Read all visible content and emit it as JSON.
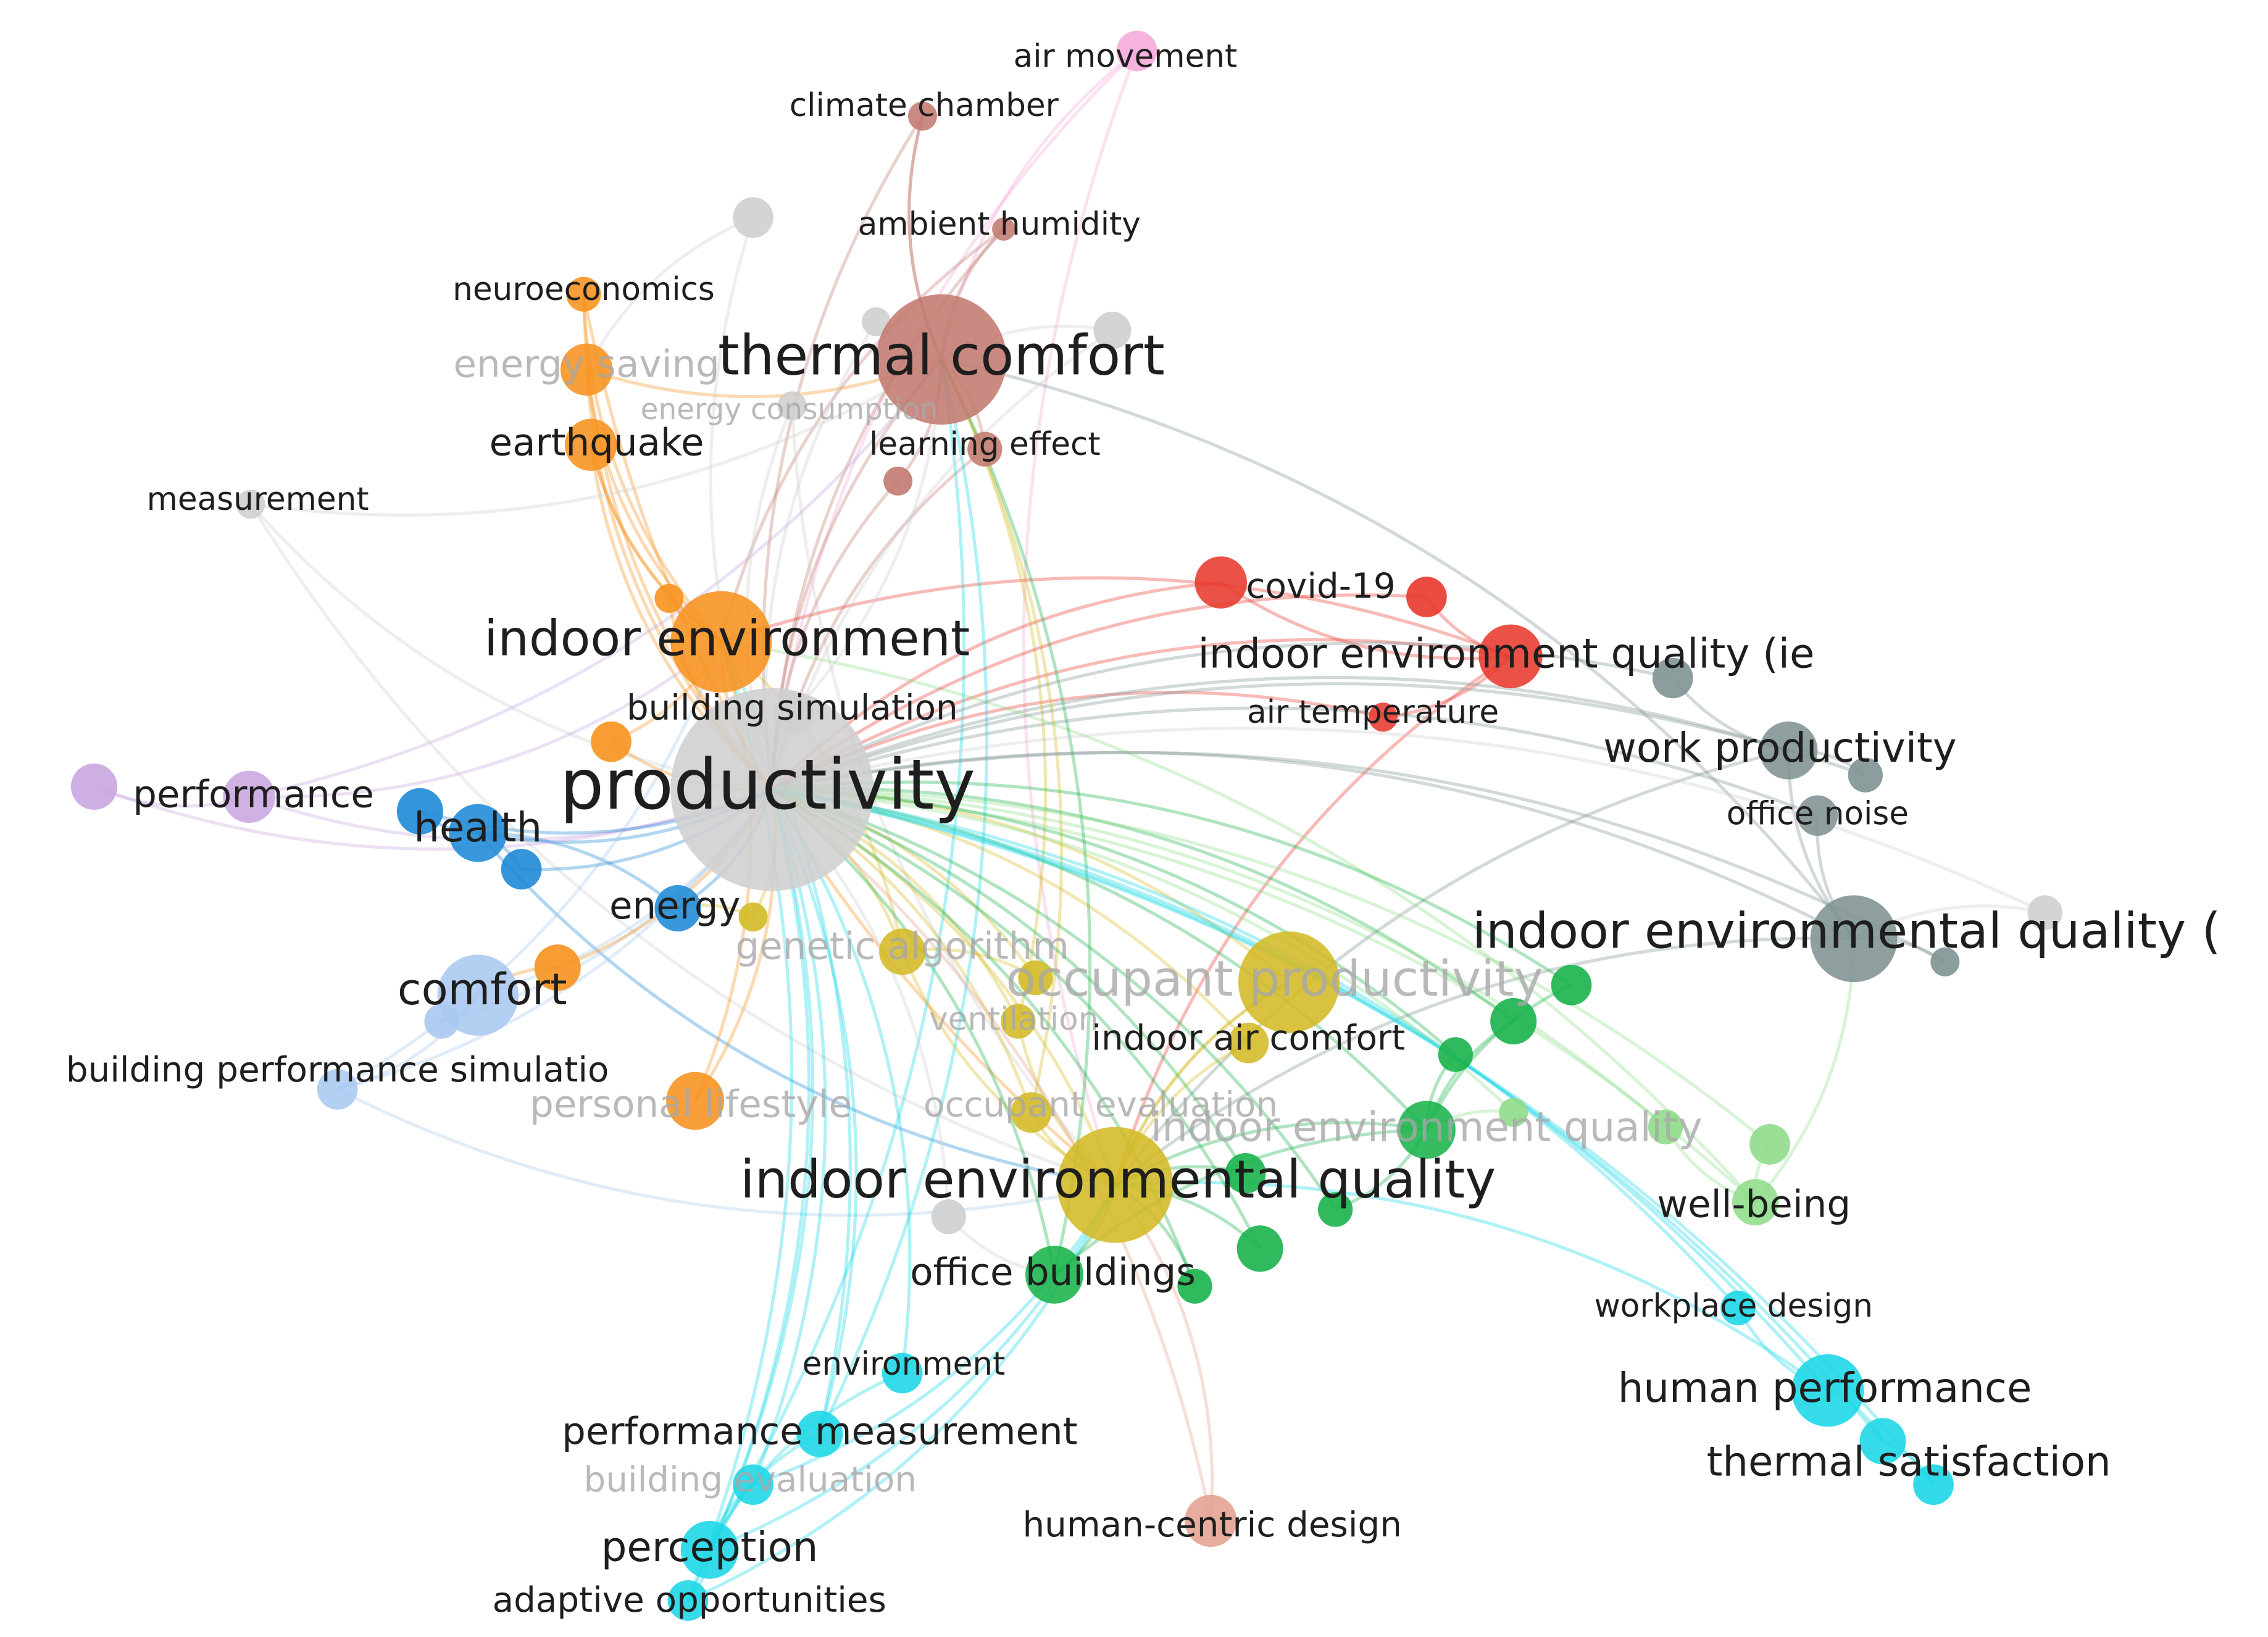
{
  "nodes": [
    {
      "label": "air movement"
    },
    {
      "label": "climate chamber"
    },
    {
      "label": "ambient humidity"
    },
    {
      "label": "neuroeconomics"
    },
    {
      "label": "thermal comfort"
    },
    {
      "label": "energy saving"
    },
    {
      "label": "energy consumption"
    },
    {
      "label": "earthquake"
    },
    {
      "label": "learning effect"
    },
    {
      "label": "measurement"
    },
    {
      "label": "covid-19"
    },
    {
      "label": "indoor environment"
    },
    {
      "label": "indoor environment quality (ie"
    },
    {
      "label": "building simulation"
    },
    {
      "label": "air temperature"
    },
    {
      "label": "work productivity"
    },
    {
      "label": "productivity"
    },
    {
      "label": "performance"
    },
    {
      "label": "health"
    },
    {
      "label": "office noise"
    },
    {
      "label": "energy"
    },
    {
      "label": "indoor environmental quality ("
    },
    {
      "label": "genetic algorithm"
    },
    {
      "label": "comfort"
    },
    {
      "label": "occupant productivity"
    },
    {
      "label": "ventilation"
    },
    {
      "label": "indoor air comfort"
    },
    {
      "label": "building performance simulatio"
    },
    {
      "label": "personal lifestyle"
    },
    {
      "label": "occupant evaluation"
    },
    {
      "label": "indoor environment quality"
    },
    {
      "label": "indoor environmental quality"
    },
    {
      "label": "well-being"
    },
    {
      "label": "office buildings"
    },
    {
      "label": "workplace design"
    },
    {
      "label": "environment"
    },
    {
      "label": "human performance"
    },
    {
      "label": "performance measurement"
    },
    {
      "label": "thermal satisfaction"
    },
    {
      "label": "building evaluation"
    },
    {
      "label": "human-centric design"
    },
    {
      "label": "perception"
    },
    {
      "label": "adaptive opportunities"
    }
  ]
}
